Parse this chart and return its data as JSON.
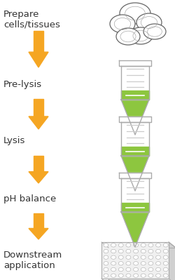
{
  "background_color": "#ffffff",
  "steps": [
    "Prepare\ncells/tissues",
    "Pre-lysis",
    "Lysis",
    "pH balance",
    "Downstream\napplication"
  ],
  "arrow_color": "#F5A623",
  "text_color": "#333333",
  "tube_fill": "#8DC63F",
  "tube_outline": "#aaaaaa",
  "tube_line": "#cccccc",
  "label_fontsize": 9.5,
  "fig_width": 2.5,
  "fig_height": 3.99
}
